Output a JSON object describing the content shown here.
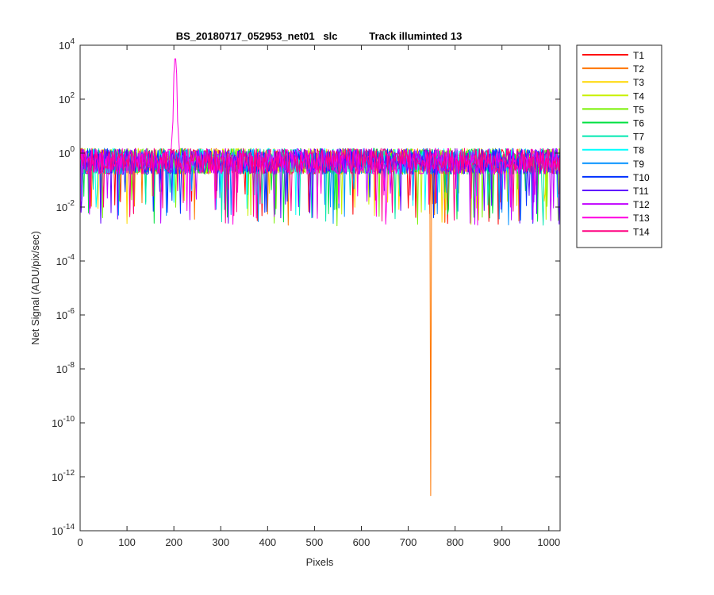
{
  "chart_data": {
    "type": "line",
    "title": "BS_20180717_052953_net01   slc           Track illuminted 13",
    "xlabel": "Pixels",
    "ylabel": "Net Signal (ADU/pix/sec)",
    "xlim": [
      0,
      1024
    ],
    "ylim": [
      1e-14,
      10000
    ],
    "yscale": "log",
    "grid": false,
    "legend_position": "outside-right",
    "x_ticks": [
      0,
      100,
      200,
      300,
      400,
      500,
      600,
      700,
      800,
      900,
      1000
    ],
    "x_tick_labels": [
      "0",
      "100",
      "200",
      "300",
      "400",
      "500",
      "600",
      "700",
      "800",
      "900",
      "1000"
    ],
    "y_ticks": [
      {
        "value": 1e-14,
        "base": "10",
        "exp": "-14"
      },
      {
        "value": 1e-12,
        "base": "10",
        "exp": "-12"
      },
      {
        "value": 1e-10,
        "base": "10",
        "exp": "-10"
      },
      {
        "value": 1e-08,
        "base": "10",
        "exp": "-8"
      },
      {
        "value": 1e-06,
        "base": "10",
        "exp": "-6"
      },
      {
        "value": 0.0001,
        "base": "10",
        "exp": "-4"
      },
      {
        "value": 0.01,
        "base": "10",
        "exp": "-2"
      },
      {
        "value": 1,
        "base": "10",
        "exp": "0"
      },
      {
        "value": 100,
        "base": "10",
        "exp": "2"
      },
      {
        "value": 10000,
        "base": "10",
        "exp": "4"
      }
    ],
    "series": [
      {
        "name": "T1",
        "color": "#ff0000"
      },
      {
        "name": "T2",
        "color": "#ff7700",
        "features": [
          {
            "type": "dip",
            "x": 748,
            "value": 2e-13
          }
        ]
      },
      {
        "name": "T3",
        "color": "#ffd700"
      },
      {
        "name": "T4",
        "color": "#c8f000"
      },
      {
        "name": "T5",
        "color": "#78f000"
      },
      {
        "name": "T6",
        "color": "#00e040"
      },
      {
        "name": "T7",
        "color": "#00e8b0"
      },
      {
        "name": "T8",
        "color": "#00ffff"
      },
      {
        "name": "T9",
        "color": "#0090ff"
      },
      {
        "name": "T10",
        "color": "#0030ff"
      },
      {
        "name": "T11",
        "color": "#6000ff"
      },
      {
        "name": "T12",
        "color": "#c000ff"
      },
      {
        "name": "T13",
        "color": "#ff00e0"
      },
      {
        "name": "T14",
        "color": "#ff0080"
      }
    ],
    "noise_band": {
      "typical_min": 0.05,
      "typical_max": 1.5,
      "occasional_min": 0.002
    },
    "features": [
      {
        "series": "T13",
        "type": "peak",
        "x": 203,
        "value": 6000
      }
    ]
  }
}
